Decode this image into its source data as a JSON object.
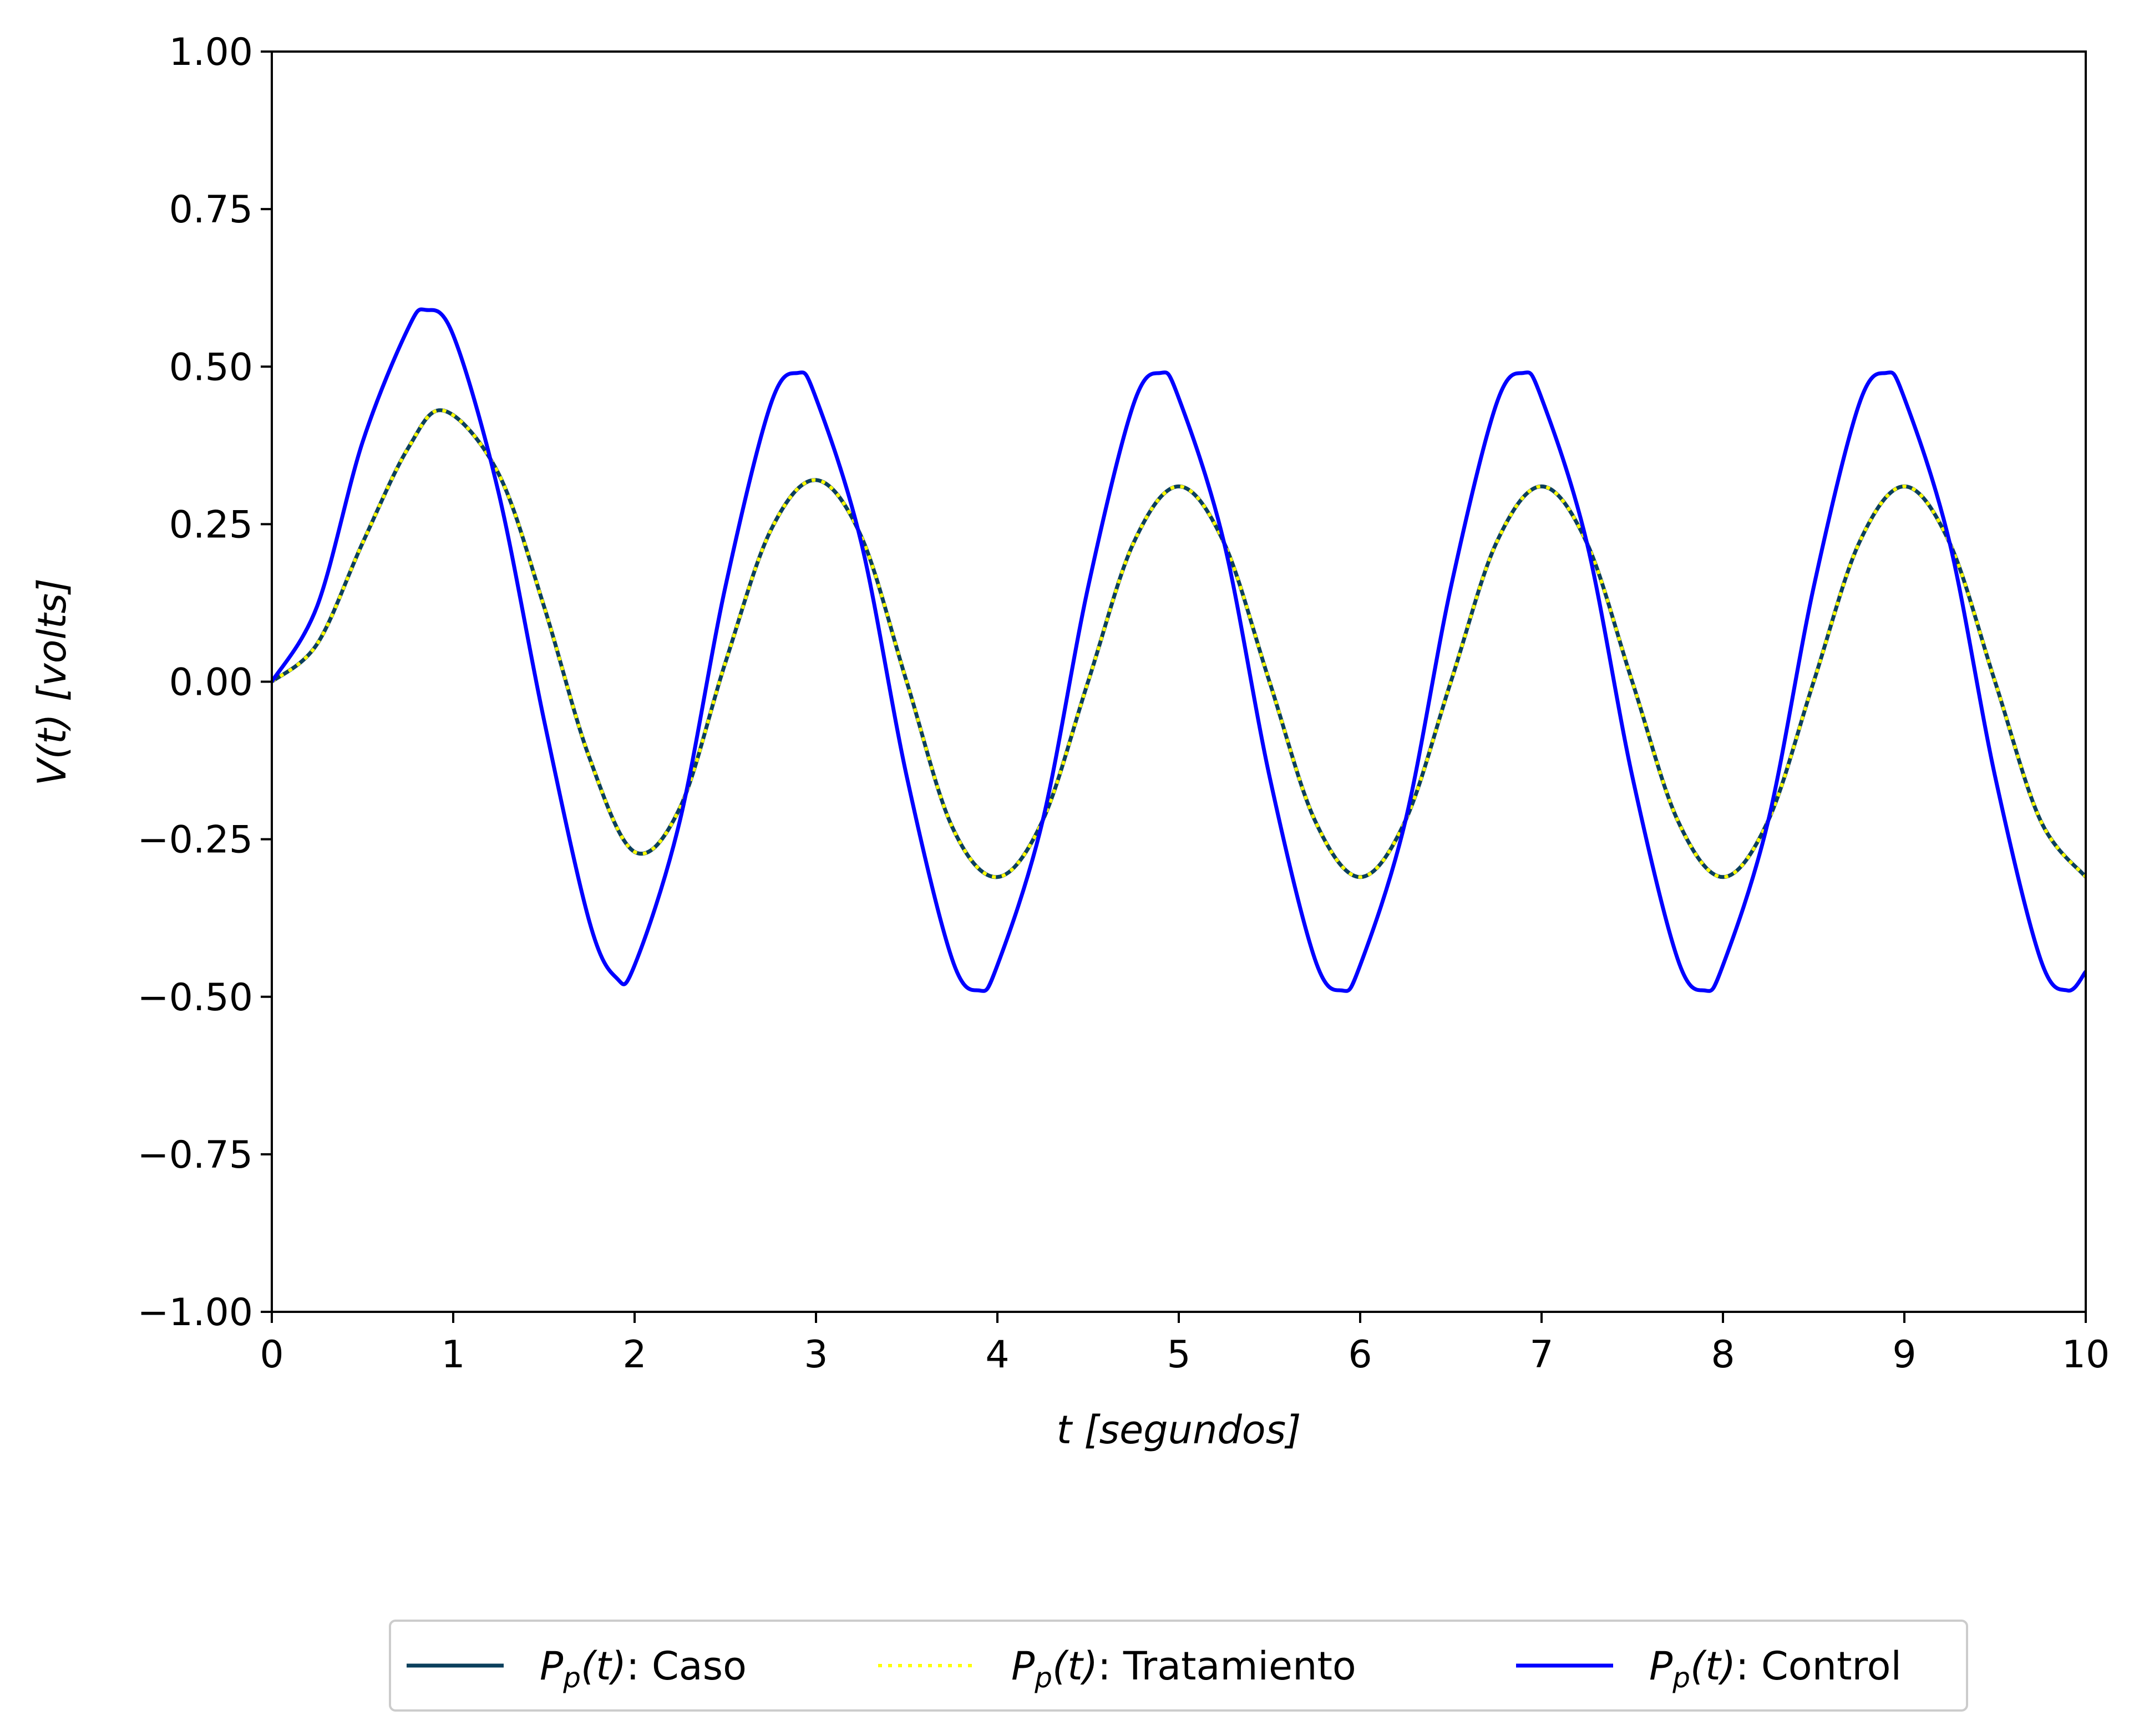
{
  "chart_data": {
    "type": "line",
    "title": "",
    "xlabel": "t [segundos]",
    "ylabel": "V(t) [volts]",
    "xlim": [
      0,
      10
    ],
    "ylim": [
      -1.0,
      1.0
    ],
    "x_ticks": [
      0,
      1,
      2,
      3,
      4,
      5,
      6,
      7,
      8,
      9,
      10
    ],
    "x_tick_labels": [
      "0",
      "1",
      "2",
      "3",
      "4",
      "5",
      "6",
      "7",
      "8",
      "9",
      "10"
    ],
    "y_ticks": [
      -1.0,
      -0.75,
      -0.5,
      -0.25,
      0.0,
      0.25,
      0.5,
      0.75,
      1.0
    ],
    "y_tick_labels": [
      "−1.00",
      "−0.75",
      "−0.50",
      "−0.25",
      "0.00",
      "0.25",
      "0.50",
      "0.75",
      "1.00"
    ],
    "grid": false,
    "legend_position": "bottom-center-outside",
    "series": [
      {
        "name": "Pp(t): Caso",
        "legend_label": {
          "p": "P",
          "sub": "p",
          "arg": "(t)",
          "rest": ": Caso"
        },
        "color": "#0b3f5c",
        "style": "solid",
        "x": [
          0,
          0.25,
          0.5,
          0.75,
          0.95,
          1.25,
          1.5,
          1.75,
          2.0,
          2.25,
          2.5,
          2.75,
          3.0,
          3.25,
          3.5,
          3.75,
          4.0,
          4.25,
          4.5,
          4.75,
          5.0,
          5.25,
          5.5,
          5.75,
          6.0,
          6.25,
          6.5,
          6.75,
          7.0,
          7.25,
          7.5,
          7.75,
          8.0,
          8.25,
          8.5,
          8.75,
          9.0,
          9.25,
          9.5,
          9.75,
          10.0
        ],
        "y": [
          0.0,
          0.06,
          0.22,
          0.37,
          0.43,
          0.33,
          0.12,
          -0.12,
          -0.27,
          -0.2,
          0.03,
          0.24,
          0.32,
          0.23,
          0.0,
          -0.23,
          -0.31,
          -0.22,
          0.0,
          0.22,
          0.31,
          0.22,
          0.0,
          -0.22,
          -0.31,
          -0.22,
          0.0,
          0.22,
          0.31,
          0.22,
          0.0,
          -0.22,
          -0.31,
          -0.22,
          0.0,
          0.22,
          0.31,
          0.22,
          0.0,
          -0.22,
          -0.31
        ]
      },
      {
        "name": "Pp(t): Tratamiento",
        "legend_label": {
          "p": "P",
          "sub": "p",
          "arg": "(t)",
          "rest": ": Tratamiento"
        },
        "color": "#ffff00",
        "style": "dotted",
        "x": [
          0,
          0.25,
          0.5,
          0.75,
          0.95,
          1.25,
          1.5,
          1.75,
          2.0,
          2.25,
          2.5,
          2.75,
          3.0,
          3.25,
          3.5,
          3.75,
          4.0,
          4.25,
          4.5,
          4.75,
          5.0,
          5.25,
          5.5,
          5.75,
          6.0,
          6.25,
          6.5,
          6.75,
          7.0,
          7.25,
          7.5,
          7.75,
          8.0,
          8.25,
          8.5,
          8.75,
          9.0,
          9.25,
          9.5,
          9.75,
          10.0
        ],
        "y": [
          0.0,
          0.06,
          0.22,
          0.37,
          0.43,
          0.33,
          0.12,
          -0.12,
          -0.27,
          -0.2,
          0.03,
          0.24,
          0.32,
          0.23,
          0.0,
          -0.23,
          -0.31,
          -0.22,
          0.0,
          0.22,
          0.31,
          0.22,
          0.0,
          -0.22,
          -0.31,
          -0.22,
          0.0,
          0.22,
          0.31,
          0.22,
          0.0,
          -0.22,
          -0.31,
          -0.22,
          0.0,
          0.22,
          0.31,
          0.22,
          0.0,
          -0.22,
          -0.31
        ]
      },
      {
        "name": "Pp(t): Control",
        "legend_label": {
          "p": "P",
          "sub": "p",
          "arg": "(t)",
          "rest": ": Control"
        },
        "color": "#0000ff",
        "style": "solid",
        "x": [
          0,
          0.25,
          0.5,
          0.75,
          0.85,
          1.0,
          1.25,
          1.5,
          1.75,
          1.9,
          2.0,
          2.25,
          2.5,
          2.75,
          2.9,
          3.0,
          3.25,
          3.5,
          3.75,
          3.9,
          4.0,
          4.25,
          4.5,
          4.75,
          4.9,
          5.0,
          5.25,
          5.5,
          5.75,
          5.9,
          6.0,
          6.25,
          6.5,
          6.75,
          6.9,
          7.0,
          7.25,
          7.5,
          7.75,
          7.9,
          8.0,
          8.25,
          8.5,
          8.75,
          8.9,
          9.0,
          9.25,
          9.5,
          9.75,
          9.9,
          10.0
        ],
        "y": [
          0.0,
          0.12,
          0.38,
          0.56,
          0.59,
          0.55,
          0.3,
          -0.06,
          -0.38,
          -0.47,
          -0.45,
          -0.22,
          0.15,
          0.44,
          0.49,
          0.45,
          0.22,
          -0.15,
          -0.44,
          -0.49,
          -0.45,
          -0.22,
          0.15,
          0.44,
          0.49,
          0.45,
          0.22,
          -0.15,
          -0.44,
          -0.49,
          -0.45,
          -0.22,
          0.15,
          0.44,
          0.49,
          0.45,
          0.22,
          -0.15,
          -0.44,
          -0.49,
          -0.45,
          -0.22,
          0.15,
          0.44,
          0.49,
          0.45,
          0.22,
          -0.15,
          -0.44,
          -0.49,
          -0.46
        ]
      }
    ]
  }
}
